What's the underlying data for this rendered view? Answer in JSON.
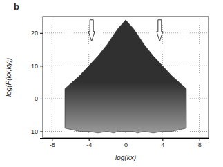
{
  "chart_data": {
    "type": "area",
    "title": "b",
    "x_label": "log(kx)",
    "y_label": "log(P(kx,ky))",
    "x": [
      -6.6,
      -5,
      -4,
      -3,
      -2,
      -1.3,
      -0.8,
      -0.3,
      0,
      0.3,
      0.8,
      1.3,
      2,
      3,
      4,
      5,
      6.6
    ],
    "series": [
      {
        "color": "#303030",
        "values": [
          3,
          7,
          10,
          13,
          16.5,
          19.5,
          21.5,
          23,
          24,
          23,
          21.5,
          19.5,
          16.5,
          13,
          10,
          7,
          3
        ]
      },
      {
        "color": "#9a9a9a",
        "values": [
          -9,
          -10,
          -10,
          -10.5,
          -10,
          -10.5,
          -10,
          -10,
          -10,
          -10,
          -10,
          -10.5,
          -10,
          -10.5,
          -10,
          -10,
          -9
        ]
      }
    ],
    "arrows": [
      {
        "x": -3.7,
        "y_top": 24,
        "y_tip": 17.5
      },
      {
        "x": 3.7,
        "y_top": 24,
        "y_tip": 17.5
      }
    ],
    "xlim": [
      -9,
      9
    ],
    "ylim": [
      -12,
      25
    ],
    "xticks": [
      -8,
      -4,
      0,
      4,
      8
    ],
    "yticks": [
      -10,
      0,
      10,
      20
    ],
    "grid": true
  }
}
